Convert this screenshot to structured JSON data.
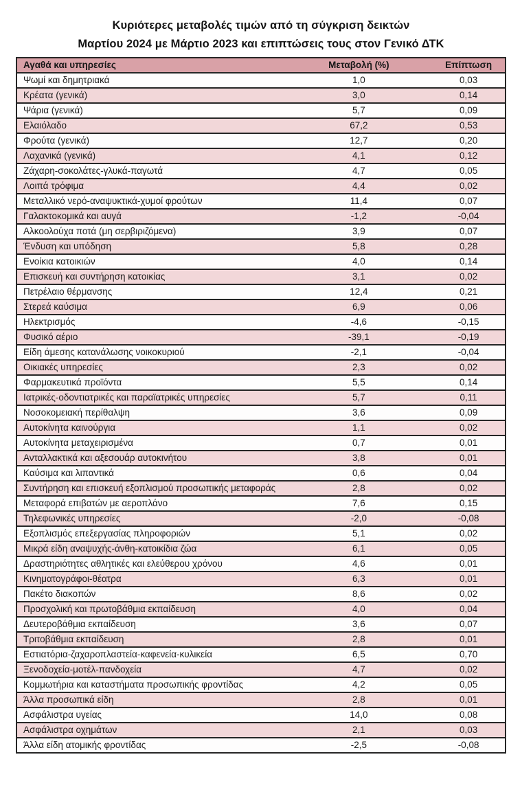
{
  "title": {
    "line1": "Κυριότερες μεταβολές τιμών από τη σύγκριση δεικτών",
    "line2": "Μαρτίου 2024 με Μάρτιο 2023 και επιπτώσεις τους στον Γενικό ΔΤΚ"
  },
  "colors": {
    "header_bg": "#d9a1a7",
    "pink_row_bg": "#f2d7d9",
    "white_row_bg": "#fefdfd",
    "border": "#262626",
    "text": "#1b1b1b"
  },
  "table": {
    "headers": {
      "goods": "Αγαθά και υπηρεσίες",
      "change": "Μεταβολή (%)",
      "impact": "Επίπτωση"
    },
    "rows": [
      {
        "label": "Ψωμί και δημητριακά",
        "change": "1,0",
        "impact": "0,03"
      },
      {
        "label": "Κρέατα (γενικά)",
        "change": "3,0",
        "impact": "0,14"
      },
      {
        "label": "Ψάρια (γενικά)",
        "change": "5,7",
        "impact": "0,09"
      },
      {
        "label": "Ελαιόλαδο",
        "change": "67,2",
        "impact": "0,53"
      },
      {
        "label": "Φρούτα (γενικά)",
        "change": "12,7",
        "impact": "0,20"
      },
      {
        "label": "Λαχανικά (γενικά)",
        "change": "4,1",
        "impact": "0,12"
      },
      {
        "label": "Ζάχαρη-σοκολάτες-γλυκά-παγωτά",
        "change": "4,7",
        "impact": "0,05"
      },
      {
        "label": "Λοιπά τρόφιμα",
        "change": "4,4",
        "impact": "0,02"
      },
      {
        "label": "Μεταλλικό νερό-αναψυκτικά-χυμοί φρούτων",
        "change": "11,4",
        "impact": "0,07"
      },
      {
        "label": "Γαλακτοκομικά και αυγά",
        "change": "-1,2",
        "impact": "-0,04"
      },
      {
        "label": "Αλκοολούχα ποτά (μη σερβιριζόμενα)",
        "change": "3,9",
        "impact": "0,07"
      },
      {
        "label": "Ένδυση και υπόδηση",
        "change": "5,8",
        "impact": "0,28"
      },
      {
        "label": "Ενοίκια κατοικιών",
        "change": "4,0",
        "impact": "0,14"
      },
      {
        "label": "Επισκευή και συντήρηση κατοικίας",
        "change": "3,1",
        "impact": "0,02"
      },
      {
        "label": "Πετρέλαιο θέρμανσης",
        "change": "12,4",
        "impact": "0,21"
      },
      {
        "label": "Στερεά καύσιμα",
        "change": "6,9",
        "impact": "0,06"
      },
      {
        "label": "Ηλεκτρισμός",
        "change": "-4,6",
        "impact": "-0,15"
      },
      {
        "label": "Φυσικό αέριο",
        "change": "-39,1",
        "impact": "-0,19"
      },
      {
        "label": "Είδη άμεσης κατανάλωσης νοικοκυριού",
        "change": "-2,1",
        "impact": "-0,04"
      },
      {
        "label": "Οικιακές υπηρεσίες",
        "change": "2,3",
        "impact": "0,02"
      },
      {
        "label": "Φαρμακευτικά προϊόντα",
        "change": "5,5",
        "impact": "0,14"
      },
      {
        "label": "Ιατρικές-οδοντιατρικές και παραϊατρικές υπηρεσίες",
        "change": "5,7",
        "impact": "0,11"
      },
      {
        "label": "Νοσοκομειακή περίθαλψη",
        "change": "3,6",
        "impact": "0,09"
      },
      {
        "label": "Αυτοκίνητα καινούργια",
        "change": "1,1",
        "impact": "0,02"
      },
      {
        "label": "Αυτοκίνητα μεταχειρισμένα",
        "change": "0,7",
        "impact": "0,01"
      },
      {
        "label": "Ανταλλακτικά και αξεσουάρ αυτοκινήτου",
        "change": "3,8",
        "impact": "0,01"
      },
      {
        "label": "Καύσιμα και λιπαντικά",
        "change": "0,6",
        "impact": "0,04"
      },
      {
        "label": "Συντήρηση και επισκευή εξοπλισμού προσωπικής μεταφοράς",
        "change": "2,8",
        "impact": "0,02"
      },
      {
        "label": "Μεταφορά επιβατών με αεροπλάνο",
        "change": "7,6",
        "impact": "0,15"
      },
      {
        "label": "Τηλεφωνικές υπηρεσίες",
        "change": "-2,0",
        "impact": "-0,08"
      },
      {
        "label": "Εξοπλισμός επεξεργασίας πληροφοριών",
        "change": "5,1",
        "impact": "0,02"
      },
      {
        "label": "Μικρά είδη αναψυχής-άνθη-κατοικίδια ζώα",
        "change": "6,1",
        "impact": "0,05"
      },
      {
        "label": "Δραστηριότητες αθλητικές και ελεύθερου χρόνου",
        "change": "4,6",
        "impact": "0,01"
      },
      {
        "label": "Κινηματογράφοι-θέατρα",
        "change": "6,3",
        "impact": "0,01"
      },
      {
        "label": "Πακέτο διακοπών",
        "change": "8,6",
        "impact": "0,02"
      },
      {
        "label": "Προσχολική και πρωτοβάθμια εκπαίδευση",
        "change": "4,0",
        "impact": "0,04"
      },
      {
        "label": "Δευτεροβάθμια εκπαίδευση",
        "change": "3,6",
        "impact": "0,07"
      },
      {
        "label": "Τριτοβάθμια εκπαίδευση",
        "change": "2,8",
        "impact": "0,01"
      },
      {
        "label": "Εστιατόρια-ζαχαροπλαστεία-καφενεία-κυλικεία",
        "change": "6,5",
        "impact": "0,70"
      },
      {
        "label": "Ξενοδοχεία-μοτέλ-πανδοχεία",
        "change": "4,7",
        "impact": "0,02"
      },
      {
        "label": "Κομμωτήρια και καταστήματα προσωπικής φροντίδας",
        "change": "4,2",
        "impact": "0,05"
      },
      {
        "label": "Άλλα προσωπικά είδη",
        "change": "2,8",
        "impact": "0,01"
      },
      {
        "label": "Ασφάλιστρα υγείας",
        "change": "14,0",
        "impact": "0,08"
      },
      {
        "label": "Ασφάλιστρα οχημάτων",
        "change": "2,1",
        "impact": "0,03"
      },
      {
        "label": "Άλλα είδη ατομικής φροντίδας",
        "change": "-2,5",
        "impact": "-0,08"
      }
    ]
  }
}
